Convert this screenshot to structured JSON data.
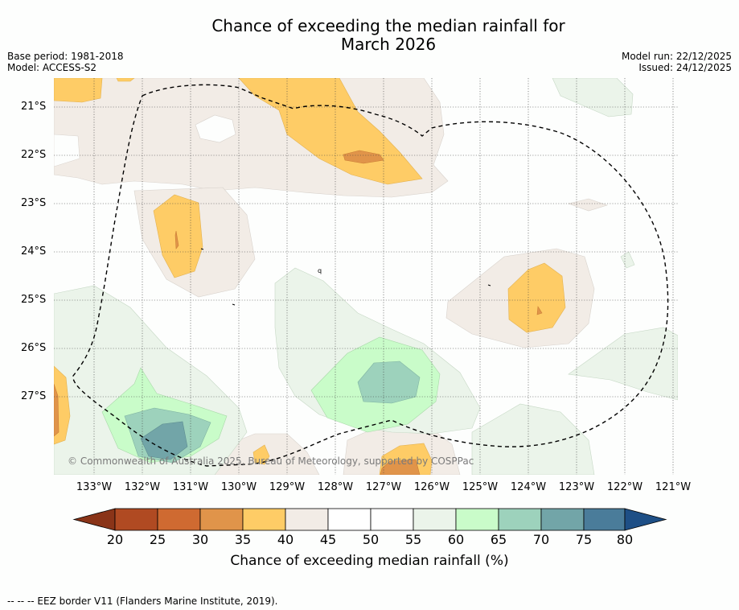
{
  "title": {
    "line1": "Chance of exceeding the median rainfall for",
    "line2": "March 2026"
  },
  "meta": {
    "base_period": "Base period: 1981-2018",
    "model": "Model: ACCESS-S2",
    "model_run": "Model run: 22/12/2025",
    "issued": "Issued: 24/12/2025"
  },
  "axes": {
    "lat_labels": [
      "21°S",
      "22°S",
      "23°S",
      "24°S",
      "25°S",
      "26°S",
      "27°S"
    ],
    "lon_labels": [
      "133°W",
      "132°W",
      "131°W",
      "130°W",
      "129°W",
      "128°W",
      "127°W",
      "126°W",
      "125°W",
      "124°W",
      "123°W",
      "122°W",
      "121°W"
    ]
  },
  "copyright": "© Commonwealth of Australia 2025, Bureau of Meteorology, supported by COSPPac",
  "colorbar": {
    "ticks": [
      "20",
      "25",
      "30",
      "35",
      "40",
      "45",
      "50",
      "55",
      "60",
      "65",
      "70",
      "75",
      "80"
    ],
    "label": "Chance of exceeding median rainfall (%)",
    "colors": {
      "below20": "#8a3418",
      "c20_25": "#b04a22",
      "c25_30": "#cf6a31",
      "c30_35": "#e0944a",
      "c35_40": "#fecc66",
      "c40_45": "#f2ece6",
      "c45_50": "#ffffff",
      "c50_55": "#ffffff",
      "c55_60": "#ebf4ea",
      "c60_65": "#c9fcc9",
      "c65_70": "#9dd2bc",
      "c70_75": "#72a5a8",
      "c75_80": "#4a7c9a",
      "above80": "#1e4f86"
    }
  },
  "footer": "--  --  -- EEZ border V11 (Flanders Marine Institute, 2019)."
}
